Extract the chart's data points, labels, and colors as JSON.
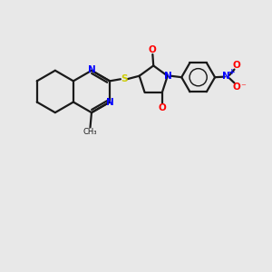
{
  "bg_color": "#e8e8e8",
  "bond_color": "#1a1a1a",
  "N_color": "#0000ff",
  "S_color": "#cccc00",
  "O_color": "#ff0000",
  "line_width": 1.6,
  "figsize": [
    3.0,
    3.0
  ],
  "dpi": 100,
  "xlim": [
    0,
    10
  ],
  "ylim": [
    0,
    10
  ]
}
